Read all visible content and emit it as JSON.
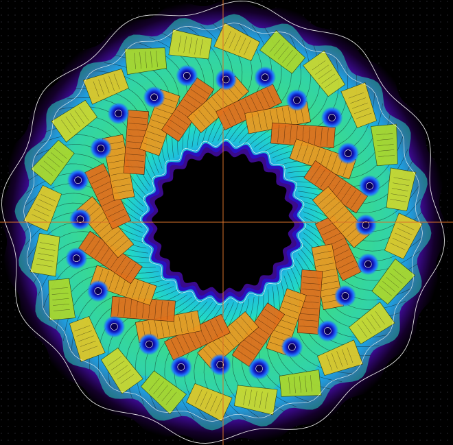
{
  "simulation": {
    "view": "magnetic-field-plot",
    "pole_count": 24,
    "slot_count": 24,
    "colors": {
      "background": "#000000",
      "grid_dot": "#2a2a33",
      "axis": "#d9722a",
      "contour": "#ffffff",
      "flux_line": "#0b0b0b",
      "field_scale": [
        "#05000a",
        "#1a0038",
        "#3a0a8c",
        "#1e3cff",
        "#1aa0ff",
        "#18e6d2",
        "#3fe07a",
        "#9fe23a",
        "#e8e02c",
        "#f0a020",
        "#e06a1a"
      ],
      "magnet_high": "#e0701c",
      "magnet_mid": "#dcc82a",
      "magnet_low": "#a8d82e",
      "slot_core": "#1010a0"
    }
  }
}
